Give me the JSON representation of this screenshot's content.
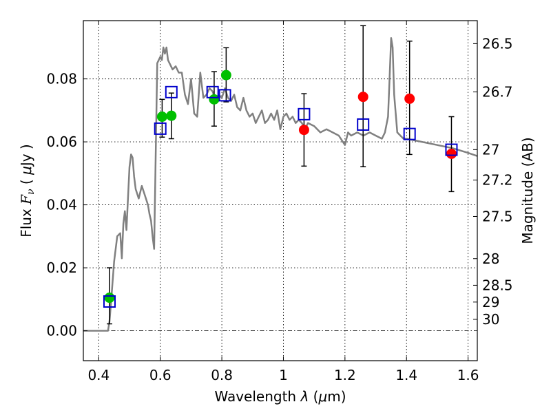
{
  "chart_data": {
    "type": "scatter",
    "title": "",
    "xlabel": "Wavelength  λ (μm)",
    "ylabel": "Flux  Fν  ( μJy )",
    "ylabel_right": "Magnitude (AB)",
    "xlim": [
      0.35,
      1.63
    ],
    "ylim": [
      -0.0095,
      0.0985
    ],
    "grid": true,
    "x_ticks": [
      0.4,
      0.6,
      0.8,
      1.0,
      1.2,
      1.4,
      1.6
    ],
    "x_tick_labels": [
      "0.4",
      "0.6",
      "0.8",
      "1",
      "1.2",
      "1.4",
      "1.6"
    ],
    "y_ticks": [
      0.0,
      0.02,
      0.04,
      0.06,
      0.08
    ],
    "y_tick_labels": [
      "0.00",
      "0.02",
      "0.04",
      "0.06",
      "0.08"
    ],
    "right_ticks": [
      {
        "label": "26.5",
        "mag": 26.5
      },
      {
        "label": "26.7",
        "mag": 26.7
      },
      {
        "label": "27",
        "mag": 27.0
      },
      {
        "label": "27.2",
        "mag": 27.2
      },
      {
        "label": "27.5",
        "mag": 27.5
      },
      {
        "label": "28",
        "mag": 28.0
      },
      {
        "label": "28.5",
        "mag": 28.5
      },
      {
        "label": "29",
        "mag": 29.0
      },
      {
        "label": "30",
        "mag": 30.0
      }
    ],
    "series": [
      {
        "kind": "line",
        "color": "#808080",
        "x": [
          0.35,
          0.43,
          0.435,
          0.44,
          0.45,
          0.46,
          0.47,
          0.475,
          0.48,
          0.485,
          0.49,
          0.5,
          0.505,
          0.51,
          0.515,
          0.52,
          0.53,
          0.54,
          0.55,
          0.56,
          0.565,
          0.57,
          0.575,
          0.58,
          0.585,
          0.59,
          0.6,
          0.605,
          0.61,
          0.615,
          0.62,
          0.625,
          0.63,
          0.64,
          0.65,
          0.66,
          0.67,
          0.68,
          0.69,
          0.7,
          0.71,
          0.72,
          0.73,
          0.74,
          0.75,
          0.76,
          0.77,
          0.78,
          0.79,
          0.8,
          0.81,
          0.82,
          0.83,
          0.84,
          0.85,
          0.86,
          0.87,
          0.88,
          0.89,
          0.9,
          0.91,
          0.92,
          0.93,
          0.94,
          0.95,
          0.96,
          0.97,
          0.98,
          0.99,
          1.0,
          1.01,
          1.02,
          1.03,
          1.04,
          1.05,
          1.06,
          1.07,
          1.08,
          1.1,
          1.12,
          1.14,
          1.16,
          1.18,
          1.2,
          1.21,
          1.22,
          1.24,
          1.26,
          1.28,
          1.3,
          1.32,
          1.33,
          1.34,
          1.345,
          1.35,
          1.355,
          1.36,
          1.37,
          1.38,
          1.39,
          1.4,
          1.45,
          1.5,
          1.55,
          1.6,
          1.63
        ],
        "values": [
          0.0,
          0.0,
          0.003,
          0.009,
          0.022,
          0.03,
          0.031,
          0.023,
          0.034,
          0.038,
          0.032,
          0.052,
          0.056,
          0.055,
          0.049,
          0.045,
          0.042,
          0.046,
          0.043,
          0.04,
          0.037,
          0.035,
          0.03,
          0.026,
          0.055,
          0.085,
          0.087,
          0.086,
          0.09,
          0.088,
          0.09,
          0.086,
          0.085,
          0.083,
          0.084,
          0.082,
          0.082,
          0.075,
          0.072,
          0.08,
          0.069,
          0.068,
          0.082,
          0.074,
          0.075,
          0.077,
          0.076,
          0.073,
          0.075,
          0.074,
          0.077,
          0.074,
          0.073,
          0.075,
          0.071,
          0.07,
          0.074,
          0.07,
          0.068,
          0.069,
          0.066,
          0.068,
          0.07,
          0.066,
          0.067,
          0.069,
          0.067,
          0.07,
          0.064,
          0.068,
          0.069,
          0.067,
          0.068,
          0.066,
          0.067,
          0.066,
          0.064,
          0.066,
          0.065,
          0.063,
          0.064,
          0.063,
          0.062,
          0.059,
          0.063,
          0.062,
          0.063,
          0.062,
          0.063,
          0.062,
          0.061,
          0.063,
          0.068,
          0.08,
          0.093,
          0.09,
          0.075,
          0.063,
          0.062,
          0.061,
          0.061,
          0.06,
          0.059,
          0.058,
          0.0565,
          0.0555
        ]
      },
      {
        "kind": "points",
        "marker": "circle",
        "color": "#00bf00",
        "x": [
          0.435,
          0.606,
          0.636,
          0.775,
          0.814
        ],
        "values": [
          0.0105,
          0.068,
          0.0683,
          0.0735,
          0.0812
        ],
        "err_low": [
          0.0083,
          0.0065,
          0.0073,
          0.0085,
          0.0085
        ],
        "err_high": [
          0.0095,
          0.0055,
          0.0072,
          0.0088,
          0.0087
        ]
      },
      {
        "kind": "points",
        "marker": "circle",
        "color": "#ff0000",
        "x": [
          1.067,
          1.259,
          1.41,
          1.546
        ],
        "values": [
          0.0638,
          0.0743,
          0.0737,
          0.0562
        ],
        "err_low": [
          0.0115,
          0.0222,
          0.0177,
          0.012
        ],
        "err_high": [
          0.0115,
          0.0226,
          0.0183,
          0.0118
        ]
      },
      {
        "kind": "points",
        "marker": "open-square",
        "color": "#0000cc",
        "x": [
          0.435,
          0.6,
          0.636,
          0.77,
          0.81,
          1.067,
          1.259,
          1.41,
          1.546
        ],
        "values": [
          0.0093,
          0.0642,
          0.0758,
          0.0758,
          0.0748,
          0.0688,
          0.0655,
          0.0625,
          0.0575
        ]
      }
    ]
  }
}
